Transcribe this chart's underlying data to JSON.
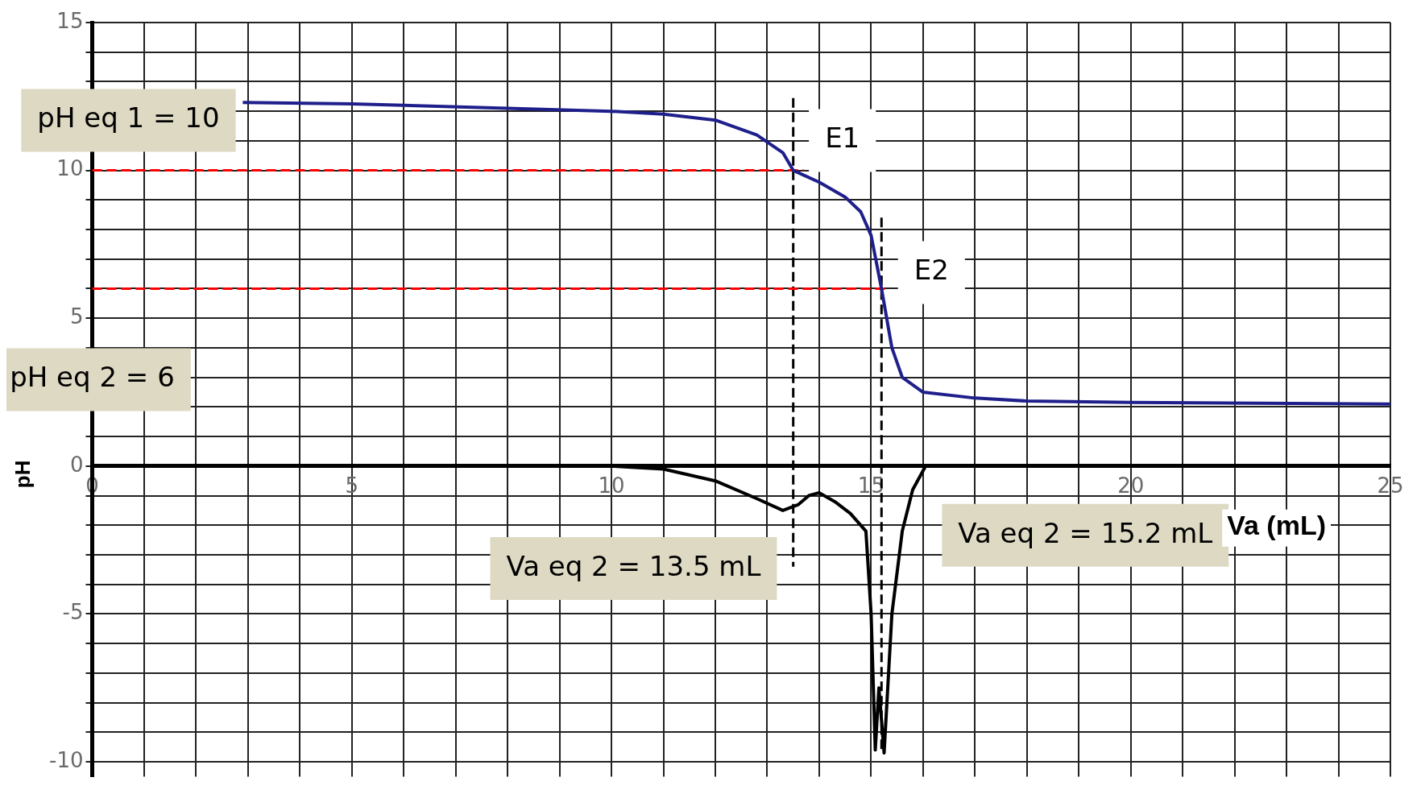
{
  "chart_data": {
    "type": "line",
    "xlabel": "Va (mL)",
    "ylabel": "pH",
    "xlim": [
      0,
      25
    ],
    "ylim": [
      -10.5,
      15
    ],
    "xticks": [
      0,
      {
        "value": 1,
        "label": null
      },
      {
        "value": 2,
        "label": null
      },
      {
        "value": 3,
        "label": null
      },
      {
        "value": 4,
        "label": null
      },
      5,
      {
        "value": 6,
        "label": null
      },
      {
        "value": 7,
        "label": null
      },
      {
        "value": 8,
        "label": null
      },
      {
        "value": 9,
        "label": null
      },
      10,
      {
        "value": 11,
        "label": null
      },
      {
        "value": 12,
        "label": null
      },
      {
        "value": 13,
        "label": null
      },
      {
        "value": 14,
        "label": null
      },
      15,
      {
        "value": 16,
        "label": null
      },
      {
        "value": 17,
        "label": null
      },
      {
        "value": 18,
        "label": null
      },
      {
        "value": 19,
        "label": null
      },
      20,
      {
        "value": 21,
        "label": null
      },
      {
        "value": 22,
        "label": null
      },
      {
        "value": 23,
        "label": null
      },
      {
        "value": 24,
        "label": null
      },
      25
    ],
    "yticks": [
      -10,
      {
        "value": -9,
        "label": null
      },
      {
        "value": -8,
        "label": null
      },
      {
        "value": -7,
        "label": null
      },
      {
        "value": -6,
        "label": null
      },
      -5,
      {
        "value": -4,
        "label": null
      },
      {
        "value": -3,
        "label": null
      },
      {
        "value": -2,
        "label": null
      },
      {
        "value": -1,
        "label": null
      },
      0,
      {
        "value": 1,
        "label": null
      },
      {
        "value": 2,
        "label": null
      },
      {
        "value": 3,
        "label": null
      },
      {
        "value": 4,
        "label": null
      },
      5,
      {
        "value": 6,
        "label": null
      },
      {
        "value": 7,
        "label": null
      },
      {
        "value": 8,
        "label": null
      },
      {
        "value": 9,
        "label": null
      },
      10,
      {
        "value": 11,
        "label": null
      },
      {
        "value": 12,
        "label": null
      },
      {
        "value": 13,
        "label": null
      },
      {
        "value": 14,
        "label": null
      },
      15
    ],
    "grid": true,
    "legend": false,
    "marker": "none",
    "series": [
      {
        "color": "#1f1f8c",
        "x": [
          2.9,
          5,
          8,
          10,
          11,
          12,
          12.8,
          13.3,
          13.5,
          14,
          14.5,
          14.8,
          15,
          15.2,
          15.4,
          15.6,
          16,
          17,
          18,
          20,
          25
        ],
        "values": [
          12.3,
          12.25,
          12.1,
          12,
          11.9,
          11.7,
          11.2,
          10.6,
          10,
          9.6,
          9.1,
          8.6,
          7.8,
          6,
          4,
          3,
          2.5,
          2.3,
          2.2,
          2.15,
          2.1
        ]
      },
      {
        "color": "#000000",
        "x": [
          0,
          5,
          10,
          11,
          12,
          12.8,
          13.3,
          13.6,
          13.8,
          14,
          14.3,
          14.6,
          14.9,
          15,
          15.08,
          15.15,
          15.25,
          15.4,
          15.6,
          15.8,
          16.05,
          17,
          25
        ],
        "values": [
          0,
          0,
          0,
          -0.1,
          -0.5,
          -1.1,
          -1.5,
          -1.3,
          -1,
          -0.9,
          -1.2,
          -1.6,
          -2.2,
          -5,
          -9.6,
          -7.5,
          -9.7,
          -5,
          -2.2,
          -0.8,
          0,
          0,
          0
        ]
      },
      {
        "color": "#ff0000",
        "line_style": "dashed",
        "x": [
          0,
          13.7
        ],
        "values": [
          10,
          10
        ]
      },
      {
        "color": "#ff0000",
        "line_style": "dashed",
        "x": [
          0,
          15.35
        ],
        "values": [
          6,
          6
        ]
      },
      {
        "color": "#000000",
        "line_style": "dashed",
        "x": [
          13.5,
          13.5
        ],
        "values": [
          12.45,
          -3.4
        ]
      },
      {
        "color": "#000000",
        "line_style": "dashed",
        "x": [
          15.2,
          15.2
        ],
        "values": [
          8.4,
          -9.6
        ]
      }
    ],
    "annotations": [
      {
        "text": "pH eq 1 = 10",
        "x": 0,
        "y": 10
      },
      {
        "text": "pH eq 2 = 6",
        "x": 0,
        "y": 6
      },
      "Va eq 2 = 13.5 mL",
      "Va eq 2 = 15.2 mL",
      {
        "text": "E1",
        "x": 13.5,
        "y": 10
      },
      {
        "text": "E2",
        "x": 15.2,
        "y": 6
      }
    ]
  }
}
